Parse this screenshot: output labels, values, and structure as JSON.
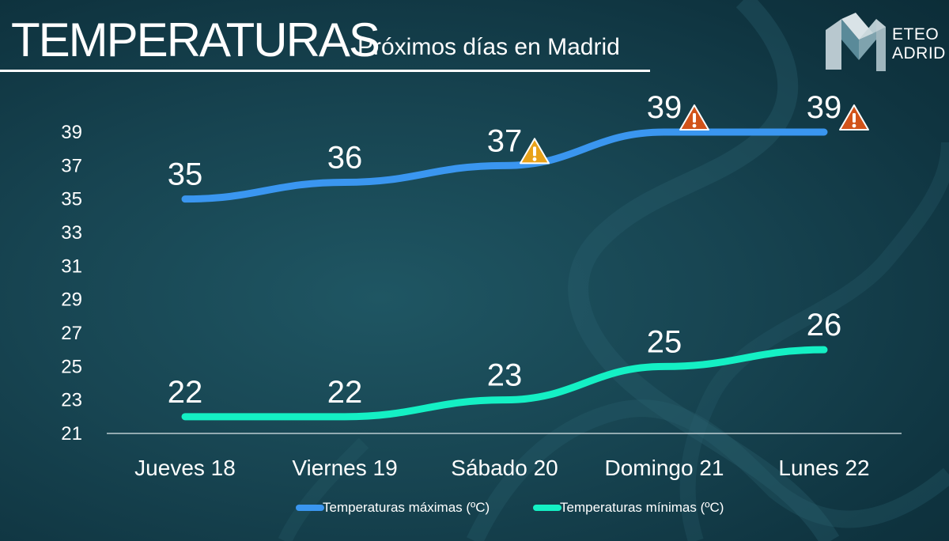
{
  "header": {
    "title": "TEMPERATURAS",
    "subtitle": "Próximos días en Madrid"
  },
  "logo": {
    "line1": "ETEO",
    "line2": "ADRID"
  },
  "colors": {
    "max_series": "#3a96f0",
    "min_series": "#14f0c4",
    "warning_yellow": "#e8a21a",
    "warning_orange": "#d2531a"
  },
  "chart_data": {
    "type": "line",
    "categories": [
      "Jueves 18",
      "Viernes 19",
      "Sábado 20",
      "Domingo 21",
      "Lunes 22"
    ],
    "series": [
      {
        "name": "Temperaturas máximas (ºC)",
        "values": [
          35,
          36,
          37,
          39,
          39
        ],
        "data_labels": [
          "35",
          "36",
          "37",
          "39",
          "39"
        ]
      },
      {
        "name": "Temperaturas mínimas (ºC)",
        "values": [
          22,
          22,
          23,
          25,
          26
        ],
        "data_labels": [
          "22",
          "22",
          "23",
          "25",
          "26"
        ]
      }
    ],
    "warnings": [
      {
        "category": "Sábado 20",
        "level": "yellow"
      },
      {
        "category": "Domingo 21",
        "level": "orange"
      },
      {
        "category": "Lunes 22",
        "level": "orange"
      }
    ],
    "y_ticks": [
      "21",
      "23",
      "25",
      "27",
      "29",
      "31",
      "33",
      "35",
      "37",
      "39"
    ],
    "ylim": [
      21,
      39
    ],
    "grid": false,
    "legend_position": "bottom",
    "title": "",
    "xlabel": "",
    "ylabel": ""
  }
}
